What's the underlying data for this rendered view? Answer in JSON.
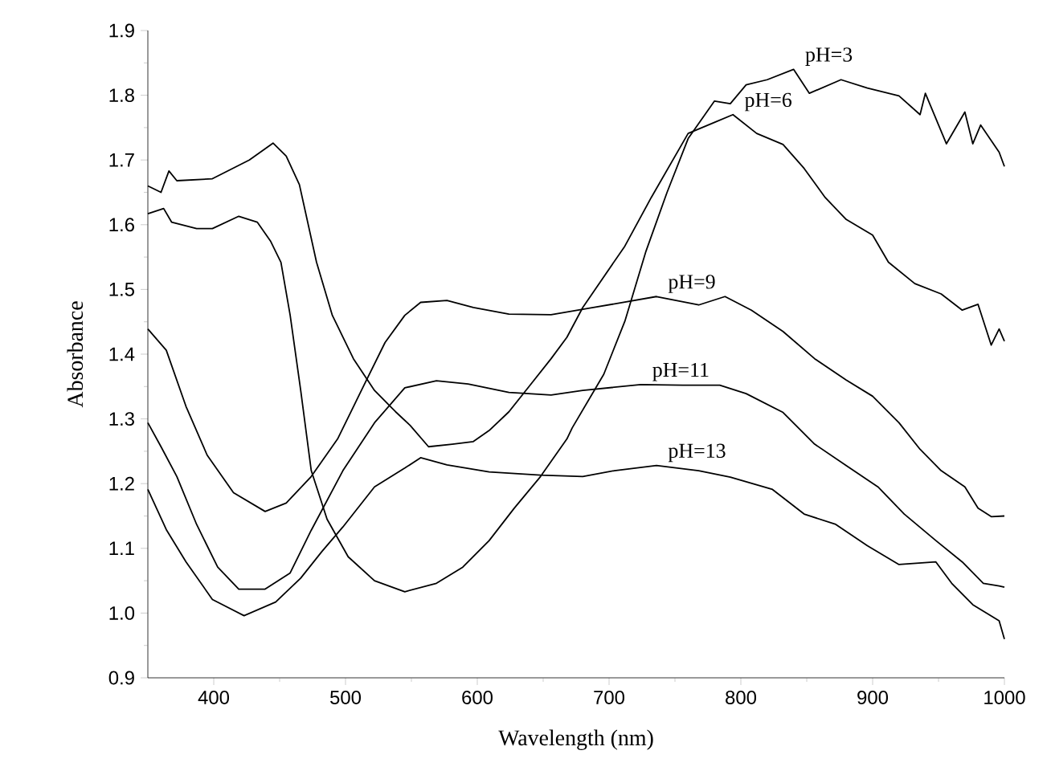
{
  "chart_data": {
    "type": "line",
    "xlabel": "Wavelength (nm)",
    "ylabel": "Absorbance",
    "xlim": [
      350,
      1000
    ],
    "ylim": [
      0.9,
      1.9
    ],
    "xticks": [
      400,
      {
        "value": 450,
        "label": null
      },
      500,
      {
        "value": 550,
        "label": null
      },
      600,
      {
        "value": 650,
        "label": null
      },
      700,
      {
        "value": 750,
        "label": null
      },
      800,
      {
        "value": 850,
        "label": null
      },
      900,
      {
        "value": 950,
        "label": null
      },
      1000
    ],
    "yticks": [
      0.9,
      {
        "value": 0.95,
        "label": null
      },
      {
        "value": 1.0,
        "label": "1.0"
      },
      {
        "value": 1.05,
        "label": null
      },
      1.1,
      {
        "value": 1.15,
        "label": null
      },
      1.2,
      {
        "value": 1.25,
        "label": null
      },
      1.3,
      {
        "value": 1.35,
        "label": null
      },
      1.4,
      {
        "value": 1.45,
        "label": null
      },
      1.5,
      {
        "value": 1.55,
        "label": null
      },
      1.6,
      {
        "value": 1.65,
        "label": null
      },
      1.7,
      {
        "value": 1.75,
        "label": null
      },
      1.8,
      {
        "value": 1.85,
        "label": null
      },
      1.9
    ],
    "grid": false,
    "legend": false,
    "marker": "none",
    "line_style": "solid",
    "series": [
      {
        "name": "pH=3",
        "color": "#000000",
        "x": [
          350,
          362,
          368,
          387,
          399,
          419,
          433,
          443,
          451,
          458,
          466,
          474,
          486,
          502,
          522,
          545,
          569,
          589,
          609,
          628,
          648,
          668,
          672,
          696,
          712,
          728,
          744,
          760,
          780,
          792,
          804,
          820,
          840,
          852,
          876,
          896,
          920,
          936,
          940,
          956,
          970,
          976,
          982,
          996,
          1000
        ],
        "values": [
          1.617,
          1.625,
          1.604,
          1.594,
          1.594,
          1.613,
          1.604,
          1.575,
          1.542,
          1.46,
          1.344,
          1.22,
          1.145,
          1.087,
          1.05,
          1.033,
          1.046,
          1.071,
          1.112,
          1.162,
          1.211,
          1.269,
          1.286,
          1.369,
          1.451,
          1.559,
          1.65,
          1.733,
          1.791,
          1.787,
          1.816,
          1.824,
          1.84,
          1.803,
          1.824,
          1.811,
          1.799,
          1.77,
          1.803,
          1.725,
          1.774,
          1.725,
          1.754,
          1.712,
          1.69
        ]
      },
      {
        "name": "pH=6",
        "color": "#000000",
        "x": [
          350,
          360,
          366,
          372,
          399,
          427,
          445,
          455,
          465,
          478,
          490,
          506,
          522,
          538,
          549,
          563,
          581,
          597,
          609,
          624,
          640,
          656,
          668,
          680,
          712,
          732,
          760,
          780,
          794,
          812,
          832,
          848,
          864,
          880,
          900,
          912,
          932,
          952,
          968,
          980,
          990,
          996,
          1000
        ],
        "values": [
          1.66,
          1.65,
          1.683,
          1.668,
          1.671,
          1.7,
          1.726,
          1.706,
          1.662,
          1.542,
          1.46,
          1.393,
          1.344,
          1.311,
          1.29,
          1.257,
          1.261,
          1.265,
          1.282,
          1.311,
          1.352,
          1.393,
          1.426,
          1.472,
          1.567,
          1.642,
          1.741,
          1.758,
          1.77,
          1.741,
          1.724,
          1.687,
          1.642,
          1.608,
          1.584,
          1.542,
          1.509,
          1.493,
          1.468,
          1.477,
          1.414,
          1.439,
          1.42
        ]
      },
      {
        "name": "pH=9",
        "color": "#000000",
        "x": [
          350,
          364,
          379,
          395,
          415,
          439,
          455,
          474,
          494,
          514,
          530,
          545,
          557,
          577,
          597,
          624,
          656,
          688,
          736,
          768,
          788,
          808,
          832,
          856,
          880,
          900,
          920,
          936,
          952,
          970,
          980,
          990,
          1000
        ],
        "values": [
          1.439,
          1.406,
          1.319,
          1.244,
          1.186,
          1.157,
          1.17,
          1.211,
          1.269,
          1.352,
          1.418,
          1.46,
          1.48,
          1.483,
          1.472,
          1.462,
          1.461,
          1.472,
          1.489,
          1.476,
          1.489,
          1.468,
          1.435,
          1.393,
          1.36,
          1.335,
          1.294,
          1.253,
          1.22,
          1.195,
          1.162,
          1.149,
          1.15
        ]
      },
      {
        "name": "pH=11",
        "color": "#000000",
        "x": [
          350,
          360,
          372,
          387,
          403,
          419,
          439,
          458,
          474,
          498,
          522,
          545,
          569,
          593,
          624,
          656,
          680,
          724,
          756,
          784,
          804,
          832,
          856,
          880,
          904,
          924,
          948,
          968,
          984,
          996,
          1000
        ],
        "values": [
          1.294,
          1.257,
          1.211,
          1.137,
          1.071,
          1.037,
          1.037,
          1.062,
          1.128,
          1.22,
          1.294,
          1.348,
          1.359,
          1.354,
          1.341,
          1.337,
          1.344,
          1.353,
          1.352,
          1.352,
          1.339,
          1.31,
          1.261,
          1.228,
          1.195,
          1.153,
          1.112,
          1.079,
          1.046,
          1.042,
          1.04
        ]
      },
      {
        "name": "pH=13",
        "color": "#000000",
        "x": [
          350,
          364,
          379,
          399,
          423,
          447,
          466,
          482,
          498,
          522,
          545,
          557,
          577,
          609,
          648,
          680,
          704,
          736,
          768,
          792,
          824,
          848,
          872,
          896,
          920,
          948,
          960,
          976,
          996,
          1000
        ],
        "values": [
          1.191,
          1.129,
          1.079,
          1.021,
          0.996,
          1.017,
          1.054,
          1.095,
          1.133,
          1.195,
          1.224,
          1.24,
          1.229,
          1.218,
          1.213,
          1.211,
          1.22,
          1.228,
          1.22,
          1.21,
          1.191,
          1.153,
          1.137,
          1.104,
          1.075,
          1.079,
          1.046,
          1.013,
          0.988,
          0.96
        ]
      }
    ]
  }
}
